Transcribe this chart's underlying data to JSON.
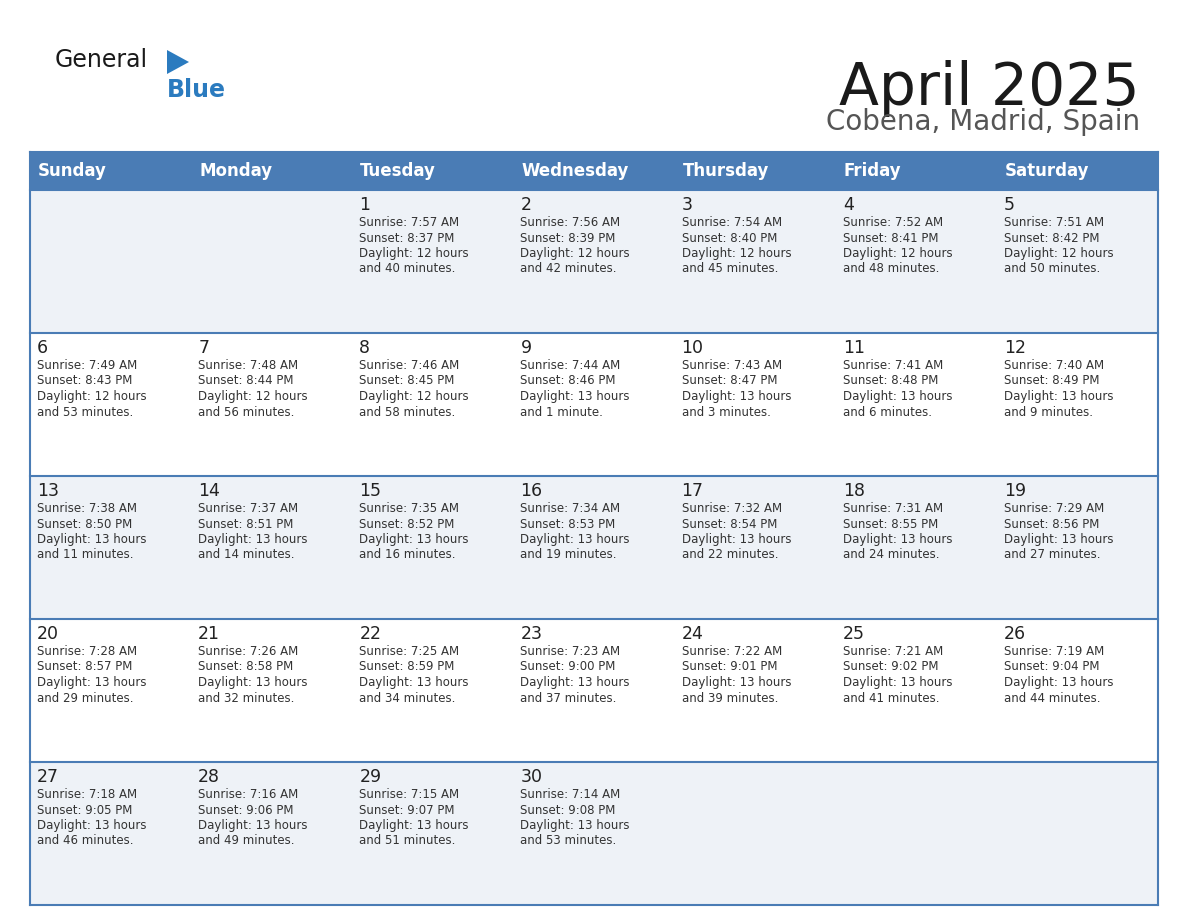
{
  "title": "April 2025",
  "subtitle": "Cobena, Madrid, Spain",
  "header_color": "#4a7cb5",
  "header_text_color": "#ffffff",
  "days_of_week": [
    "Sunday",
    "Monday",
    "Tuesday",
    "Wednesday",
    "Thursday",
    "Friday",
    "Saturday"
  ],
  "row_color_even": "#eef2f7",
  "row_color_odd": "#ffffff",
  "border_color": "#4a7cb5",
  "text_color": "#333333",
  "day_num_color": "#222222",
  "logo_general_color": "#1a1a1a",
  "logo_blue_color": "#2b7bbf",
  "logo_triangle_color": "#2b7bbf",
  "cal_data": [
    [
      {
        "day": "",
        "sunrise": "",
        "sunset": "",
        "daylight": ""
      },
      {
        "day": "",
        "sunrise": "",
        "sunset": "",
        "daylight": ""
      },
      {
        "day": "1",
        "sunrise": "7:57 AM",
        "sunset": "8:37 PM",
        "daylight": "12 hours and 40 minutes."
      },
      {
        "day": "2",
        "sunrise": "7:56 AM",
        "sunset": "8:39 PM",
        "daylight": "12 hours and 42 minutes."
      },
      {
        "day": "3",
        "sunrise": "7:54 AM",
        "sunset": "8:40 PM",
        "daylight": "12 hours and 45 minutes."
      },
      {
        "day": "4",
        "sunrise": "7:52 AM",
        "sunset": "8:41 PM",
        "daylight": "12 hours and 48 minutes."
      },
      {
        "day": "5",
        "sunrise": "7:51 AM",
        "sunset": "8:42 PM",
        "daylight": "12 hours and 50 minutes."
      }
    ],
    [
      {
        "day": "6",
        "sunrise": "7:49 AM",
        "sunset": "8:43 PM",
        "daylight": "12 hours and 53 minutes."
      },
      {
        "day": "7",
        "sunrise": "7:48 AM",
        "sunset": "8:44 PM",
        "daylight": "12 hours and 56 minutes."
      },
      {
        "day": "8",
        "sunrise": "7:46 AM",
        "sunset": "8:45 PM",
        "daylight": "12 hours and 58 minutes."
      },
      {
        "day": "9",
        "sunrise": "7:44 AM",
        "sunset": "8:46 PM",
        "daylight": "13 hours and 1 minute."
      },
      {
        "day": "10",
        "sunrise": "7:43 AM",
        "sunset": "8:47 PM",
        "daylight": "13 hours and 3 minutes."
      },
      {
        "day": "11",
        "sunrise": "7:41 AM",
        "sunset": "8:48 PM",
        "daylight": "13 hours and 6 minutes."
      },
      {
        "day": "12",
        "sunrise": "7:40 AM",
        "sunset": "8:49 PM",
        "daylight": "13 hours and 9 minutes."
      }
    ],
    [
      {
        "day": "13",
        "sunrise": "7:38 AM",
        "sunset": "8:50 PM",
        "daylight": "13 hours and 11 minutes."
      },
      {
        "day": "14",
        "sunrise": "7:37 AM",
        "sunset": "8:51 PM",
        "daylight": "13 hours and 14 minutes."
      },
      {
        "day": "15",
        "sunrise": "7:35 AM",
        "sunset": "8:52 PM",
        "daylight": "13 hours and 16 minutes."
      },
      {
        "day": "16",
        "sunrise": "7:34 AM",
        "sunset": "8:53 PM",
        "daylight": "13 hours and 19 minutes."
      },
      {
        "day": "17",
        "sunrise": "7:32 AM",
        "sunset": "8:54 PM",
        "daylight": "13 hours and 22 minutes."
      },
      {
        "day": "18",
        "sunrise": "7:31 AM",
        "sunset": "8:55 PM",
        "daylight": "13 hours and 24 minutes."
      },
      {
        "day": "19",
        "sunrise": "7:29 AM",
        "sunset": "8:56 PM",
        "daylight": "13 hours and 27 minutes."
      }
    ],
    [
      {
        "day": "20",
        "sunrise": "7:28 AM",
        "sunset": "8:57 PM",
        "daylight": "13 hours and 29 minutes."
      },
      {
        "day": "21",
        "sunrise": "7:26 AM",
        "sunset": "8:58 PM",
        "daylight": "13 hours and 32 minutes."
      },
      {
        "day": "22",
        "sunrise": "7:25 AM",
        "sunset": "8:59 PM",
        "daylight": "13 hours and 34 minutes."
      },
      {
        "day": "23",
        "sunrise": "7:23 AM",
        "sunset": "9:00 PM",
        "daylight": "13 hours and 37 minutes."
      },
      {
        "day": "24",
        "sunrise": "7:22 AM",
        "sunset": "9:01 PM",
        "daylight": "13 hours and 39 minutes."
      },
      {
        "day": "25",
        "sunrise": "7:21 AM",
        "sunset": "9:02 PM",
        "daylight": "13 hours and 41 minutes."
      },
      {
        "day": "26",
        "sunrise": "7:19 AM",
        "sunset": "9:04 PM",
        "daylight": "13 hours and 44 minutes."
      }
    ],
    [
      {
        "day": "27",
        "sunrise": "7:18 AM",
        "sunset": "9:05 PM",
        "daylight": "13 hours and 46 minutes."
      },
      {
        "day": "28",
        "sunrise": "7:16 AM",
        "sunset": "9:06 PM",
        "daylight": "13 hours and 49 minutes."
      },
      {
        "day": "29",
        "sunrise": "7:15 AM",
        "sunset": "9:07 PM",
        "daylight": "13 hours and 51 minutes."
      },
      {
        "day": "30",
        "sunrise": "7:14 AM",
        "sunset": "9:08 PM",
        "daylight": "13 hours and 53 minutes."
      },
      {
        "day": "",
        "sunrise": "",
        "sunset": "",
        "daylight": ""
      },
      {
        "day": "",
        "sunrise": "",
        "sunset": "",
        "daylight": ""
      },
      {
        "day": "",
        "sunrise": "",
        "sunset": "",
        "daylight": ""
      }
    ]
  ]
}
